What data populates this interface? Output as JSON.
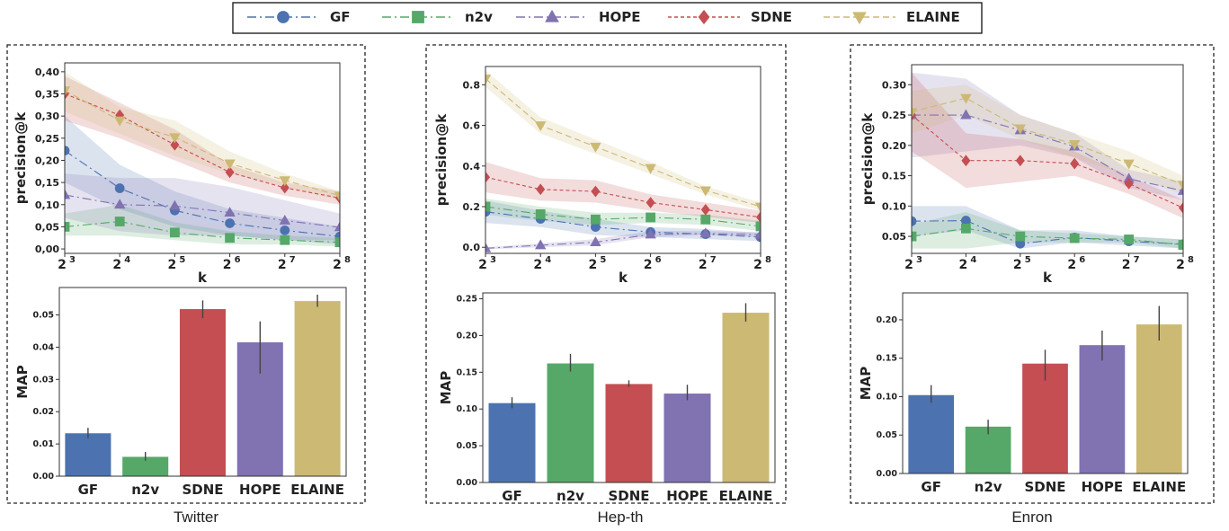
{
  "legend": {
    "items": [
      {
        "label": "GF",
        "color": "#4c72b0",
        "marker": "circle",
        "dash": "10,4,2,4"
      },
      {
        "label": "n2v",
        "color": "#55a868",
        "marker": "square",
        "dash": "10,4,2,4"
      },
      {
        "label": "HOPE",
        "color": "#8172b2",
        "marker": "triangle-up",
        "dash": "10,4,2,4"
      },
      {
        "label": "SDNE",
        "color": "#c44e52",
        "marker": "diamond",
        "dash": "4,3"
      },
      {
        "label": "ELAINE",
        "color": "#ccb974",
        "marker": "triangle-down",
        "dash": "7,4"
      }
    ]
  },
  "panels": [
    {
      "title": "Twitter"
    },
    {
      "title": "Hep-th"
    },
    {
      "title": "Enron"
    }
  ],
  "chart_data": [
    {
      "type": "line",
      "panel": "Twitter",
      "xlabel": "k",
      "ylabel": "precision@k",
      "x": [
        3,
        4,
        5,
        6,
        7,
        8
      ],
      "x_tick_labels": [
        "2",
        "2",
        "2",
        "2",
        "2",
        "2"
      ],
      "x_tick_exponents": [
        "3",
        "4",
        "5",
        "6",
        "7",
        "8"
      ],
      "ylim": [
        -0.01,
        0.42
      ],
      "yticks": [
        0.0,
        0.05,
        0.1,
        0.15,
        0.2,
        0.25,
        0.3,
        0.35,
        0.4
      ],
      "ytick_labels": [
        "0,00",
        "0,05",
        "0,10",
        "0,15",
        "0,20",
        "0,25",
        "0,30",
        "0,35",
        "0,40"
      ],
      "series": [
        {
          "name": "GF",
          "values": [
            0.222,
            0.137,
            0.087,
            0.058,
            0.042,
            0.028
          ],
          "band": [
            [
              0.15,
              0.3
            ],
            [
              0.09,
              0.19
            ],
            [
              0.05,
              0.13
            ],
            [
              0.03,
              0.09
            ],
            [
              0.02,
              0.07
            ],
            [
              0.01,
              0.05
            ]
          ]
        },
        {
          "name": "n2v",
          "values": [
            0.05,
            0.062,
            0.037,
            0.025,
            0.02,
            0.015
          ],
          "band": [
            [
              0.03,
              0.08
            ],
            [
              0.03,
              0.1
            ],
            [
              0.02,
              0.06
            ],
            [
              0.01,
              0.04
            ],
            [
              0.01,
              0.03
            ],
            [
              0.005,
              0.025
            ]
          ]
        },
        {
          "name": "HOPE",
          "values": [
            0.122,
            0.1,
            0.097,
            0.082,
            0.064,
            0.049
          ],
          "band": [
            [
              0.07,
              0.17
            ],
            [
              0.04,
              0.16
            ],
            [
              0.03,
              0.16
            ],
            [
              0.03,
              0.14
            ],
            [
              0.02,
              0.11
            ],
            [
              0.02,
              0.08
            ]
          ]
        },
        {
          "name": "SDNE",
          "values": [
            0.35,
            0.302,
            0.235,
            0.173,
            0.138,
            0.115
          ],
          "band": [
            [
              0.29,
              0.39
            ],
            [
              0.25,
              0.33
            ],
            [
              0.2,
              0.27
            ],
            [
              0.15,
              0.19
            ],
            [
              0.12,
              0.15
            ],
            [
              0.1,
              0.13
            ]
          ]
        },
        {
          "name": "ELAINE",
          "values": [
            0.358,
            0.29,
            0.252,
            0.193,
            0.155,
            0.12
          ],
          "band": [
            [
              0.31,
              0.4
            ],
            [
              0.26,
              0.32
            ],
            [
              0.21,
              0.29
            ],
            [
              0.17,
              0.22
            ],
            [
              0.14,
              0.17
            ],
            [
              0.11,
              0.13
            ]
          ]
        }
      ]
    },
    {
      "type": "bar",
      "panel": "Twitter",
      "ylabel": "MAP",
      "categories": [
        "GF",
        "n2v",
        "SDNE",
        "HOPE",
        "ELAINE"
      ],
      "values": [
        0.0133,
        0.006,
        0.0518,
        0.0415,
        0.0543
      ],
      "errors": [
        [
          0.0118,
          0.015
        ],
        [
          0.0048,
          0.0075
        ],
        [
          0.049,
          0.0545
        ],
        [
          0.0318,
          0.048
        ],
        [
          0.0525,
          0.0563
        ]
      ],
      "ylim": [
        0,
        0.0585
      ],
      "yticks": [
        0.0,
        0.01,
        0.02,
        0.03,
        0.04,
        0.05
      ],
      "ytick_labels": [
        "0.00",
        "0.01",
        "0.02",
        "0.03",
        "0.04",
        "0.05"
      ]
    },
    {
      "type": "line",
      "panel": "Hep-th",
      "xlabel": "k",
      "ylabel": "precision@k",
      "x": [
        3,
        4,
        5,
        6,
        7,
        8
      ],
      "x_tick_labels": [
        "2",
        "2",
        "2",
        "2",
        "2",
        "2"
      ],
      "x_tick_exponents": [
        "3",
        "4",
        "5",
        "6",
        "7",
        "8"
      ],
      "ylim": [
        -0.03,
        0.89
      ],
      "yticks": [
        0.0,
        0.2,
        0.4,
        0.6,
        0.8
      ],
      "ytick_labels": [
        "0.0",
        "0.2",
        "0.4",
        "0.6",
        "0.8"
      ],
      "series": [
        {
          "name": "GF",
          "values": [
            0.175,
            0.14,
            0.1,
            0.075,
            0.065,
            0.05
          ],
          "band": [
            [
              0.12,
              0.23
            ],
            [
              0.1,
              0.18
            ],
            [
              0.06,
              0.14
            ],
            [
              0.05,
              0.1
            ],
            [
              0.04,
              0.09
            ],
            [
              0.03,
              0.07
            ]
          ]
        },
        {
          "name": "n2v",
          "values": [
            0.2,
            0.163,
            0.137,
            0.147,
            0.137,
            0.103
          ],
          "band": [
            [
              0.16,
              0.24
            ],
            [
              0.13,
              0.2
            ],
            [
              0.11,
              0.17
            ],
            [
              0.12,
              0.17
            ],
            [
              0.11,
              0.16
            ],
            [
              0.08,
              0.13
            ]
          ]
        },
        {
          "name": "HOPE",
          "values": [
            -0.005,
            0.01,
            0.025,
            0.063,
            0.068,
            0.062
          ],
          "band": [
            [
              -0.01,
              0.0
            ],
            [
              0.0,
              0.02
            ],
            [
              0.01,
              0.04
            ],
            [
              0.05,
              0.08
            ],
            [
              0.06,
              0.08
            ],
            [
              0.05,
              0.075
            ]
          ]
        },
        {
          "name": "SDNE",
          "values": [
            0.345,
            0.285,
            0.275,
            0.22,
            0.185,
            0.148
          ],
          "band": [
            [
              0.27,
              0.42
            ],
            [
              0.23,
              0.34
            ],
            [
              0.22,
              0.33
            ],
            [
              0.18,
              0.26
            ],
            [
              0.15,
              0.22
            ],
            [
              0.12,
              0.18
            ]
          ]
        },
        {
          "name": "ELAINE",
          "values": [
            0.83,
            0.6,
            0.495,
            0.39,
            0.28,
            0.2
          ],
          "band": [
            [
              0.79,
              0.87
            ],
            [
              0.56,
              0.64
            ],
            [
              0.46,
              0.53
            ],
            [
              0.36,
              0.42
            ],
            [
              0.26,
              0.3
            ],
            [
              0.18,
              0.22
            ]
          ]
        }
      ]
    },
    {
      "type": "bar",
      "panel": "Hep-th",
      "ylabel": "MAP",
      "categories": [
        "GF",
        "n2v",
        "SDNE",
        "HOPE",
        "ELAINE"
      ],
      "values": [
        0.108,
        0.162,
        0.134,
        0.121,
        0.231
      ],
      "errors": [
        [
          0.101,
          0.116
        ],
        [
          0.151,
          0.175
        ],
        [
          0.13,
          0.139
        ],
        [
          0.112,
          0.133
        ],
        [
          0.219,
          0.244
        ]
      ],
      "ylim": [
        0,
        0.258
      ],
      "yticks": [
        0.0,
        0.05,
        0.1,
        0.15,
        0.2,
        0.25
      ],
      "ytick_labels": [
        "0.00",
        "0.05",
        "0.10",
        "0.15",
        "0.20",
        "0.25"
      ]
    },
    {
      "type": "line",
      "panel": "Enron",
      "xlabel": "k",
      "ylabel": "precision@k",
      "x": [
        3,
        4,
        5,
        6,
        7,
        8
      ],
      "x_tick_labels": [
        "2",
        "2",
        "2",
        "2",
        "2",
        "2"
      ],
      "x_tick_exponents": [
        "3",
        "4",
        "5",
        "6",
        "7",
        "8"
      ],
      "ylim": [
        0.022,
        0.333
      ],
      "yticks": [
        0.05,
        0.1,
        0.15,
        0.2,
        0.25,
        0.3
      ],
      "ytick_labels": [
        "0.05",
        "0.10",
        "0.15",
        "0.20",
        "0.25",
        "0.30"
      ],
      "series": [
        {
          "name": "GF",
          "values": [
            0.075,
            0.076,
            0.038,
            0.048,
            0.042,
            0.037
          ],
          "band": [
            [
              0.05,
              0.1
            ],
            [
              0.06,
              0.1
            ],
            [
              0.03,
              0.06
            ],
            [
              0.04,
              0.06
            ],
            [
              0.035,
              0.05
            ],
            [
              0.03,
              0.045
            ]
          ]
        },
        {
          "name": "n2v",
          "values": [
            0.05,
            0.063,
            0.05,
            0.047,
            0.045,
            0.036
          ],
          "band": [
            [
              0.03,
              0.07
            ],
            [
              0.03,
              0.09
            ],
            [
              0.04,
              0.06
            ],
            [
              0.04,
              0.055
            ],
            [
              0.04,
              0.05
            ],
            [
              0.03,
              0.045
            ]
          ]
        },
        {
          "name": "HOPE",
          "values": [
            0.25,
            0.25,
            0.225,
            0.198,
            0.145,
            0.125
          ],
          "band": [
            [
              0.18,
              0.32
            ],
            [
              0.19,
              0.31
            ],
            [
              0.2,
              0.25
            ],
            [
              0.18,
              0.22
            ],
            [
              0.13,
              0.16
            ],
            [
              0.11,
              0.14
            ]
          ]
        },
        {
          "name": "SDNE",
          "values": [
            0.25,
            0.175,
            0.175,
            0.17,
            0.137,
            0.097
          ],
          "band": [
            [
              0.19,
              0.32
            ],
            [
              0.13,
              0.22
            ],
            [
              0.14,
              0.21
            ],
            [
              0.15,
              0.19
            ],
            [
              0.12,
              0.15
            ],
            [
              0.08,
              0.11
            ]
          ]
        },
        {
          "name": "ELAINE",
          "values": [
            0.255,
            0.278,
            0.228,
            0.202,
            0.17,
            0.135
          ],
          "band": [
            [
              0.22,
              0.29
            ],
            [
              0.25,
              0.3
            ],
            [
              0.21,
              0.25
            ],
            [
              0.18,
              0.22
            ],
            [
              0.15,
              0.19
            ],
            [
              0.12,
              0.15
            ]
          ]
        }
      ]
    },
    {
      "type": "bar",
      "panel": "Enron",
      "ylabel": "MAP",
      "categories": [
        "GF",
        "n2v",
        "SDNE",
        "HOPE",
        "ELAINE"
      ],
      "values": [
        0.102,
        0.061,
        0.143,
        0.167,
        0.194
      ],
      "errors": [
        [
          0.092,
          0.115
        ],
        [
          0.051,
          0.07
        ],
        [
          0.121,
          0.161
        ],
        [
          0.147,
          0.186
        ],
        [
          0.173,
          0.218
        ]
      ],
      "ylim": [
        0,
        0.235
      ],
      "yticks": [
        0.0,
        0.05,
        0.1,
        0.15,
        0.2
      ],
      "ytick_labels": [
        "0.00",
        "0.05",
        "0.10",
        "0.15",
        "0.20"
      ]
    }
  ]
}
